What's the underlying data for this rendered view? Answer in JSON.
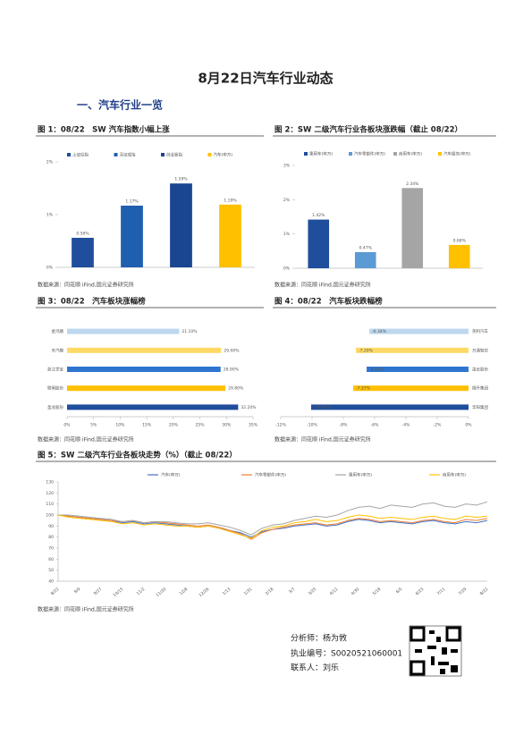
{
  "header": {
    "title": "8月22日汽车行业动态"
  },
  "section_title": "一、汽车行业一览",
  "figures": [
    {
      "caption": "图 1：08/22　SW 汽车指数小幅上涨",
      "source": "数据来源：同花顺 iFind,国元证券研究所"
    },
    {
      "caption": "图 2：SW 二级汽车行业各板块涨跌幅（截止 08/22）",
      "source": "数据来源：同花顺 iFind,国元证券研究所"
    },
    {
      "caption": "图 3：08/22　汽车板块涨幅榜",
      "source": "数据来源：同花顺 iFind,国元证券研究所"
    },
    {
      "caption": "图 4：08/22　汽车板块跌幅榜",
      "source": "数据来源：同花顺 iFind,国元证券研究所"
    },
    {
      "caption": "图 5：SW 二级汽车行业各板块走势（%）（截止 08/22）",
      "source": "数据来源：同花顺 iFind,国元证券研究所"
    }
  ],
  "chart_data": [
    {
      "type": "bar",
      "categories": [
        "上证综指",
        "深证成指",
        "创业板指",
        "汽车(申万)"
      ],
      "values": [
        0.56,
        1.17,
        1.59,
        1.19
      ],
      "value_labels": [
        "0.56%",
        "1.17%",
        "1.59%",
        "1.19%"
      ],
      "colors": [
        "#1f4e9c",
        "#1f5fb0",
        "#1a4590",
        "#ffc000"
      ],
      "ylim": [
        0,
        2
      ],
      "yticks": [
        {
          "value": 0,
          "label": "0%"
        },
        {
          "value": 1,
          "label": "1%"
        },
        {
          "value": 2,
          "label": "2%"
        }
      ],
      "grid": false
    },
    {
      "type": "bar",
      "categories": [
        "乘用车(申万)",
        "汽车零部件(申万)",
        "商用车(申万)",
        "汽车服务(申万)"
      ],
      "values": [
        1.42,
        0.47,
        2.34,
        0.68
      ],
      "value_labels": [
        "1.42%",
        "0.47%",
        "2.34%",
        "0.68%"
      ],
      "colors": [
        "#1f4e9c",
        "#5b9bd5",
        "#a5a5a5",
        "#ffc000"
      ],
      "ylim": [
        0,
        3
      ],
      "yticks": [
        {
          "value": 0,
          "label": "0%"
        },
        {
          "value": 1,
          "label": "1%"
        },
        {
          "value": 2,
          "label": "2%"
        },
        {
          "value": 3,
          "label": "3%"
        }
      ],
      "grid": false
    },
    {
      "type": "barh",
      "categories": [
        "金鸿顺",
        "天汽模",
        "浙江世宝",
        "联明股份",
        "圣龙股份"
      ],
      "values": [
        21.1,
        29.0,
        28.9,
        29.8,
        32.2
      ],
      "value_labels": [
        "21.10%",
        "29.00%",
        "28.90%",
        "29.80%",
        "32.20%"
      ],
      "colors": [
        "#bdd7ee",
        "#ffd966",
        "#2e75d0",
        "#ffc000",
        "#1f4e9c"
      ],
      "xlim": [
        0,
        35
      ],
      "xticks": [
        {
          "value": 0,
          "label": "0%"
        },
        {
          "value": 5,
          "label": "5%"
        },
        {
          "value": 10,
          "label": "10%"
        },
        {
          "value": 15,
          "label": "15%"
        },
        {
          "value": 20,
          "label": "20%"
        },
        {
          "value": 25,
          "label": "25%"
        },
        {
          "value": 30,
          "label": "30%"
        },
        {
          "value": 35,
          "label": "35%"
        }
      ]
    },
    {
      "type": "barh",
      "categories": [
        "英利汽车",
        "万通智控",
        "凌云股份",
        "旭升集团",
        "华阳集团"
      ],
      "values": [
        -6.34,
        -7.2,
        -6.51,
        -7.37,
        -10.06
      ],
      "value_labels": [
        "-6.34%",
        "-7.20%",
        "-6.51%",
        "-7.37%",
        "-10.06%"
      ],
      "colors": [
        "#bdd7ee",
        "#ffd966",
        "#2e75d0",
        "#ffc000",
        "#1f4e9c"
      ],
      "xlim": [
        -12,
        0
      ],
      "xticks": [
        {
          "value": -12,
          "label": "-12%"
        },
        {
          "value": -10,
          "label": "-10%"
        },
        {
          "value": -8,
          "label": "-8%"
        },
        {
          "value": -6,
          "label": "-6%"
        },
        {
          "value": -4,
          "label": "-4%"
        },
        {
          "value": -2,
          "label": "-2%"
        },
        {
          "value": 0,
          "label": "0%"
        }
      ]
    },
    {
      "type": "line",
      "categories": [
        "8/22",
        null,
        "9/9",
        null,
        "9/27",
        null,
        "10/15",
        null,
        "11/2",
        null,
        "11/20",
        null,
        "12/8",
        null,
        "12/26",
        null,
        "1/13",
        null,
        "1/31",
        null,
        "2/18",
        null,
        "3/7",
        null,
        "3/25",
        null,
        "4/12",
        null,
        "4/30",
        null,
        "5/18",
        null,
        "6/5",
        null,
        "6/23",
        null,
        "7/11",
        null,
        "7/29",
        null,
        "8/22"
      ],
      "series": [
        {
          "name": "汽车(申万)",
          "color": "#4472c4",
          "values": [
            100,
            99,
            98,
            97,
            96,
            95,
            93,
            94,
            92,
            93,
            92,
            91,
            90,
            89,
            90,
            88,
            86,
            84,
            80,
            85,
            87,
            88,
            90,
            91,
            92,
            90,
            91,
            94,
            96,
            95,
            93,
            94,
            93,
            92,
            94,
            95,
            93,
            92,
            94,
            93,
            95
          ]
        },
        {
          "name": "汽车零部件(申万)",
          "color": "#ed7d31",
          "values": [
            100,
            99,
            98,
            97,
            96,
            95,
            94,
            95,
            93,
            94,
            93,
            92,
            91,
            90,
            91,
            89,
            86,
            83,
            78,
            84,
            87,
            89,
            91,
            92,
            93,
            91,
            92,
            95,
            97,
            96,
            94,
            95,
            94,
            93,
            95,
            96,
            94,
            93,
            96,
            95,
            97
          ]
        },
        {
          "name": "乘用车(申万)",
          "color": "#a5a5a5",
          "values": [
            100,
            100,
            99,
            98,
            97,
            96,
            94,
            95,
            93,
            94,
            94,
            93,
            92,
            92,
            93,
            91,
            89,
            86,
            82,
            88,
            91,
            92,
            95,
            97,
            99,
            98,
            100,
            104,
            107,
            108,
            106,
            109,
            108,
            107,
            110,
            111,
            108,
            107,
            110,
            109,
            112
          ]
        },
        {
          "name": "商用车(申万)",
          "color": "#ffc000",
          "values": [
            100,
            98,
            97,
            96,
            95,
            94,
            92,
            93,
            91,
            92,
            91,
            90,
            90,
            89,
            90,
            88,
            85,
            82,
            79,
            86,
            89,
            90,
            93,
            94,
            96,
            94,
            95,
            98,
            100,
            99,
            97,
            98,
            97,
            96,
            98,
            99,
            97,
            96,
            99,
            98,
            99
          ]
        }
      ],
      "ylim": [
        40,
        130
      ],
      "yticks": [
        40,
        50,
        60,
        70,
        80,
        90,
        100,
        110,
        120,
        130
      ],
      "grid": false
    }
  ],
  "analyst": {
    "name": "分析师：杨为敩",
    "license": "执业编号：S0020521060001",
    "contact": "联系人：刘乐"
  }
}
